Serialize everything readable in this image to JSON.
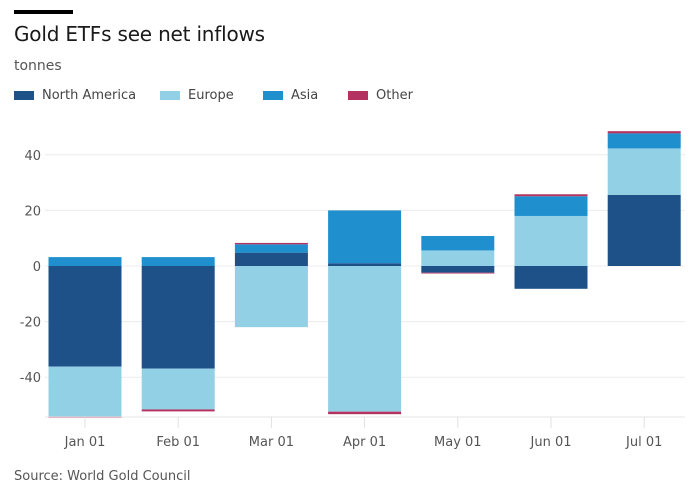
{
  "chart_data": {
    "type": "bar",
    "stacked": true,
    "title": "Gold ETFs see net inflows",
    "ylabel": "tonnes",
    "xlabel": "",
    "source": "Source: World Gold Council",
    "categories": [
      "Jan 01",
      "Feb 01",
      "Mar 01",
      "Apr 01",
      "May 01",
      "Jun 01",
      "Jul 01"
    ],
    "series": [
      {
        "name": "North America",
        "color": "#1f5189",
        "values": [
          -36.2,
          -36.9,
          4.8,
          1.0,
          -2.4,
          -8.2,
          25.6
        ]
      },
      {
        "name": "Europe",
        "color": "#92d0e6",
        "values": [
          -17.9,
          -14.7,
          -22.0,
          -52.4,
          5.6,
          18.0,
          16.7
        ]
      },
      {
        "name": "Asia",
        "color": "#1f8fce",
        "values": [
          3.2,
          3.2,
          3.0,
          19.0,
          5.2,
          7.1,
          5.4
        ]
      },
      {
        "name": "Other",
        "color": "#b3325f",
        "values": [
          -0.5,
          -0.7,
          0.5,
          -0.9,
          -0.3,
          0.7,
          0.8
        ]
      }
    ],
    "yticks": [
      40,
      20,
      0,
      -20,
      -40
    ],
    "ylim": [
      -55,
      50
    ],
    "grid": true,
    "legend": "top-left"
  }
}
